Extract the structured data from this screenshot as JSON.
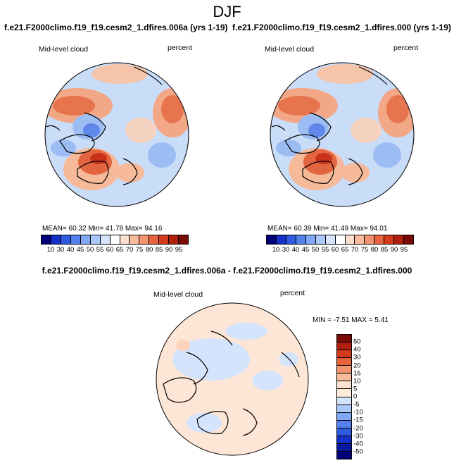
{
  "title": "DJF",
  "panels": [
    {
      "run": "f.e21.F2000climo.f19_f19.cesm2_1.dfires.006a (yrs 1-19)",
      "variable": "Mid-level cloud",
      "units": "percent",
      "stats": "MEAN=  60.32   Min=  41.78   Max=  94.16"
    },
    {
      "run": "f.e21.F2000climo.f19_f19.cesm2_1.dfires.000 (yrs 1-19)",
      "variable": "Mid-level cloud",
      "units": "percent",
      "stats": "MEAN=  60.39   Min=  41.49   Max=  94.01"
    }
  ],
  "diff_panel": {
    "run": "f.e21.F2000climo.f19_f19.cesm2_1.dfires.006a - f.e21.F2000climo.f19_f19.cesm2_1.dfires.000",
    "variable": "Mid-level cloud",
    "units": "percent",
    "stats": "MIN =  -7.51 MAX =   5.41"
  },
  "colorbar_main": {
    "labels": [
      "10",
      "30",
      "40",
      "45",
      "50",
      "55",
      "60",
      "65",
      "70",
      "75",
      "80",
      "85",
      "90",
      "95"
    ],
    "colors": [
      "#00007a",
      "#1430c8",
      "#2f5ae0",
      "#5580ee",
      "#80a8f6",
      "#abc8fb",
      "#d5e4fd",
      "#ffffff",
      "#fde0cf",
      "#f8bc9c",
      "#f29470",
      "#e8643e",
      "#d43b1c",
      "#b01e0e",
      "#7a0a05"
    ]
  },
  "colorbar_diff": {
    "labels": [
      "50",
      "40",
      "30",
      "20",
      "15",
      "10",
      "5",
      "0",
      "-5",
      "-10",
      "-15",
      "-20",
      "-30",
      "-40",
      "-50"
    ],
    "colors": [
      "#7a0a05",
      "#b01e0e",
      "#d43b1c",
      "#e8643e",
      "#f29470",
      "#f8bc9c",
      "#fde0cf",
      "#fdeadb",
      "#d5e4fd",
      "#abc8fb",
      "#80a8f6",
      "#5580ee",
      "#2f5ae0",
      "#1430c8",
      "#0a1aa0",
      "#00007a"
    ]
  }
}
